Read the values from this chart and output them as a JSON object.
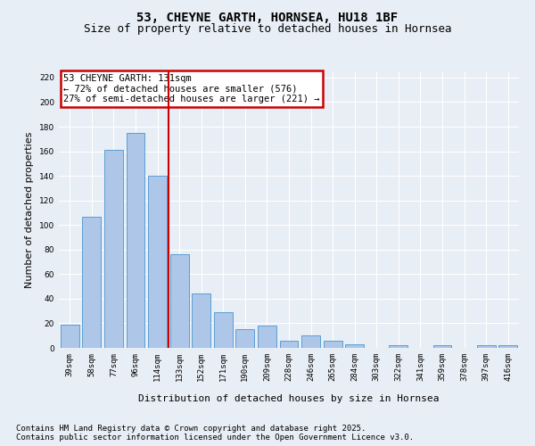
{
  "title": "53, CHEYNE GARTH, HORNSEA, HU18 1BF",
  "subtitle": "Size of property relative to detached houses in Hornsea",
  "xlabel": "Distribution of detached houses by size in Hornsea",
  "ylabel": "Number of detached properties",
  "bar_labels": [
    "39sqm",
    "58sqm",
    "77sqm",
    "96sqm",
    "114sqm",
    "133sqm",
    "152sqm",
    "171sqm",
    "190sqm",
    "209sqm",
    "228sqm",
    "246sqm",
    "265sqm",
    "284sqm",
    "303sqm",
    "322sqm",
    "341sqm",
    "359sqm",
    "378sqm",
    "397sqm",
    "416sqm"
  ],
  "bar_values": [
    19,
    107,
    161,
    175,
    140,
    76,
    44,
    29,
    15,
    18,
    6,
    10,
    6,
    3,
    0,
    2,
    0,
    2,
    0,
    2,
    2
  ],
  "bar_color": "#aec6e8",
  "bar_edge_color": "#5a9fd4",
  "vline_color": "#cc0000",
  "annotation_text": "53 CHEYNE GARTH: 131sqm\n← 72% of detached houses are smaller (576)\n27% of semi-detached houses are larger (221) →",
  "annotation_box_color": "#cc0000",
  "ylim": [
    0,
    225
  ],
  "yticks": [
    0,
    20,
    40,
    60,
    80,
    100,
    120,
    140,
    160,
    180,
    200,
    220
  ],
  "footnote": "Contains HM Land Registry data © Crown copyright and database right 2025.\nContains public sector information licensed under the Open Government Licence v3.0.",
  "bg_color": "#e8eef5",
  "plot_bg_color": "#e8eef5",
  "grid_color": "#ffffff",
  "title_fontsize": 10,
  "subtitle_fontsize": 9,
  "axis_label_fontsize": 8,
  "tick_fontsize": 6.5,
  "annotation_fontsize": 7.5,
  "footnote_fontsize": 6.5
}
